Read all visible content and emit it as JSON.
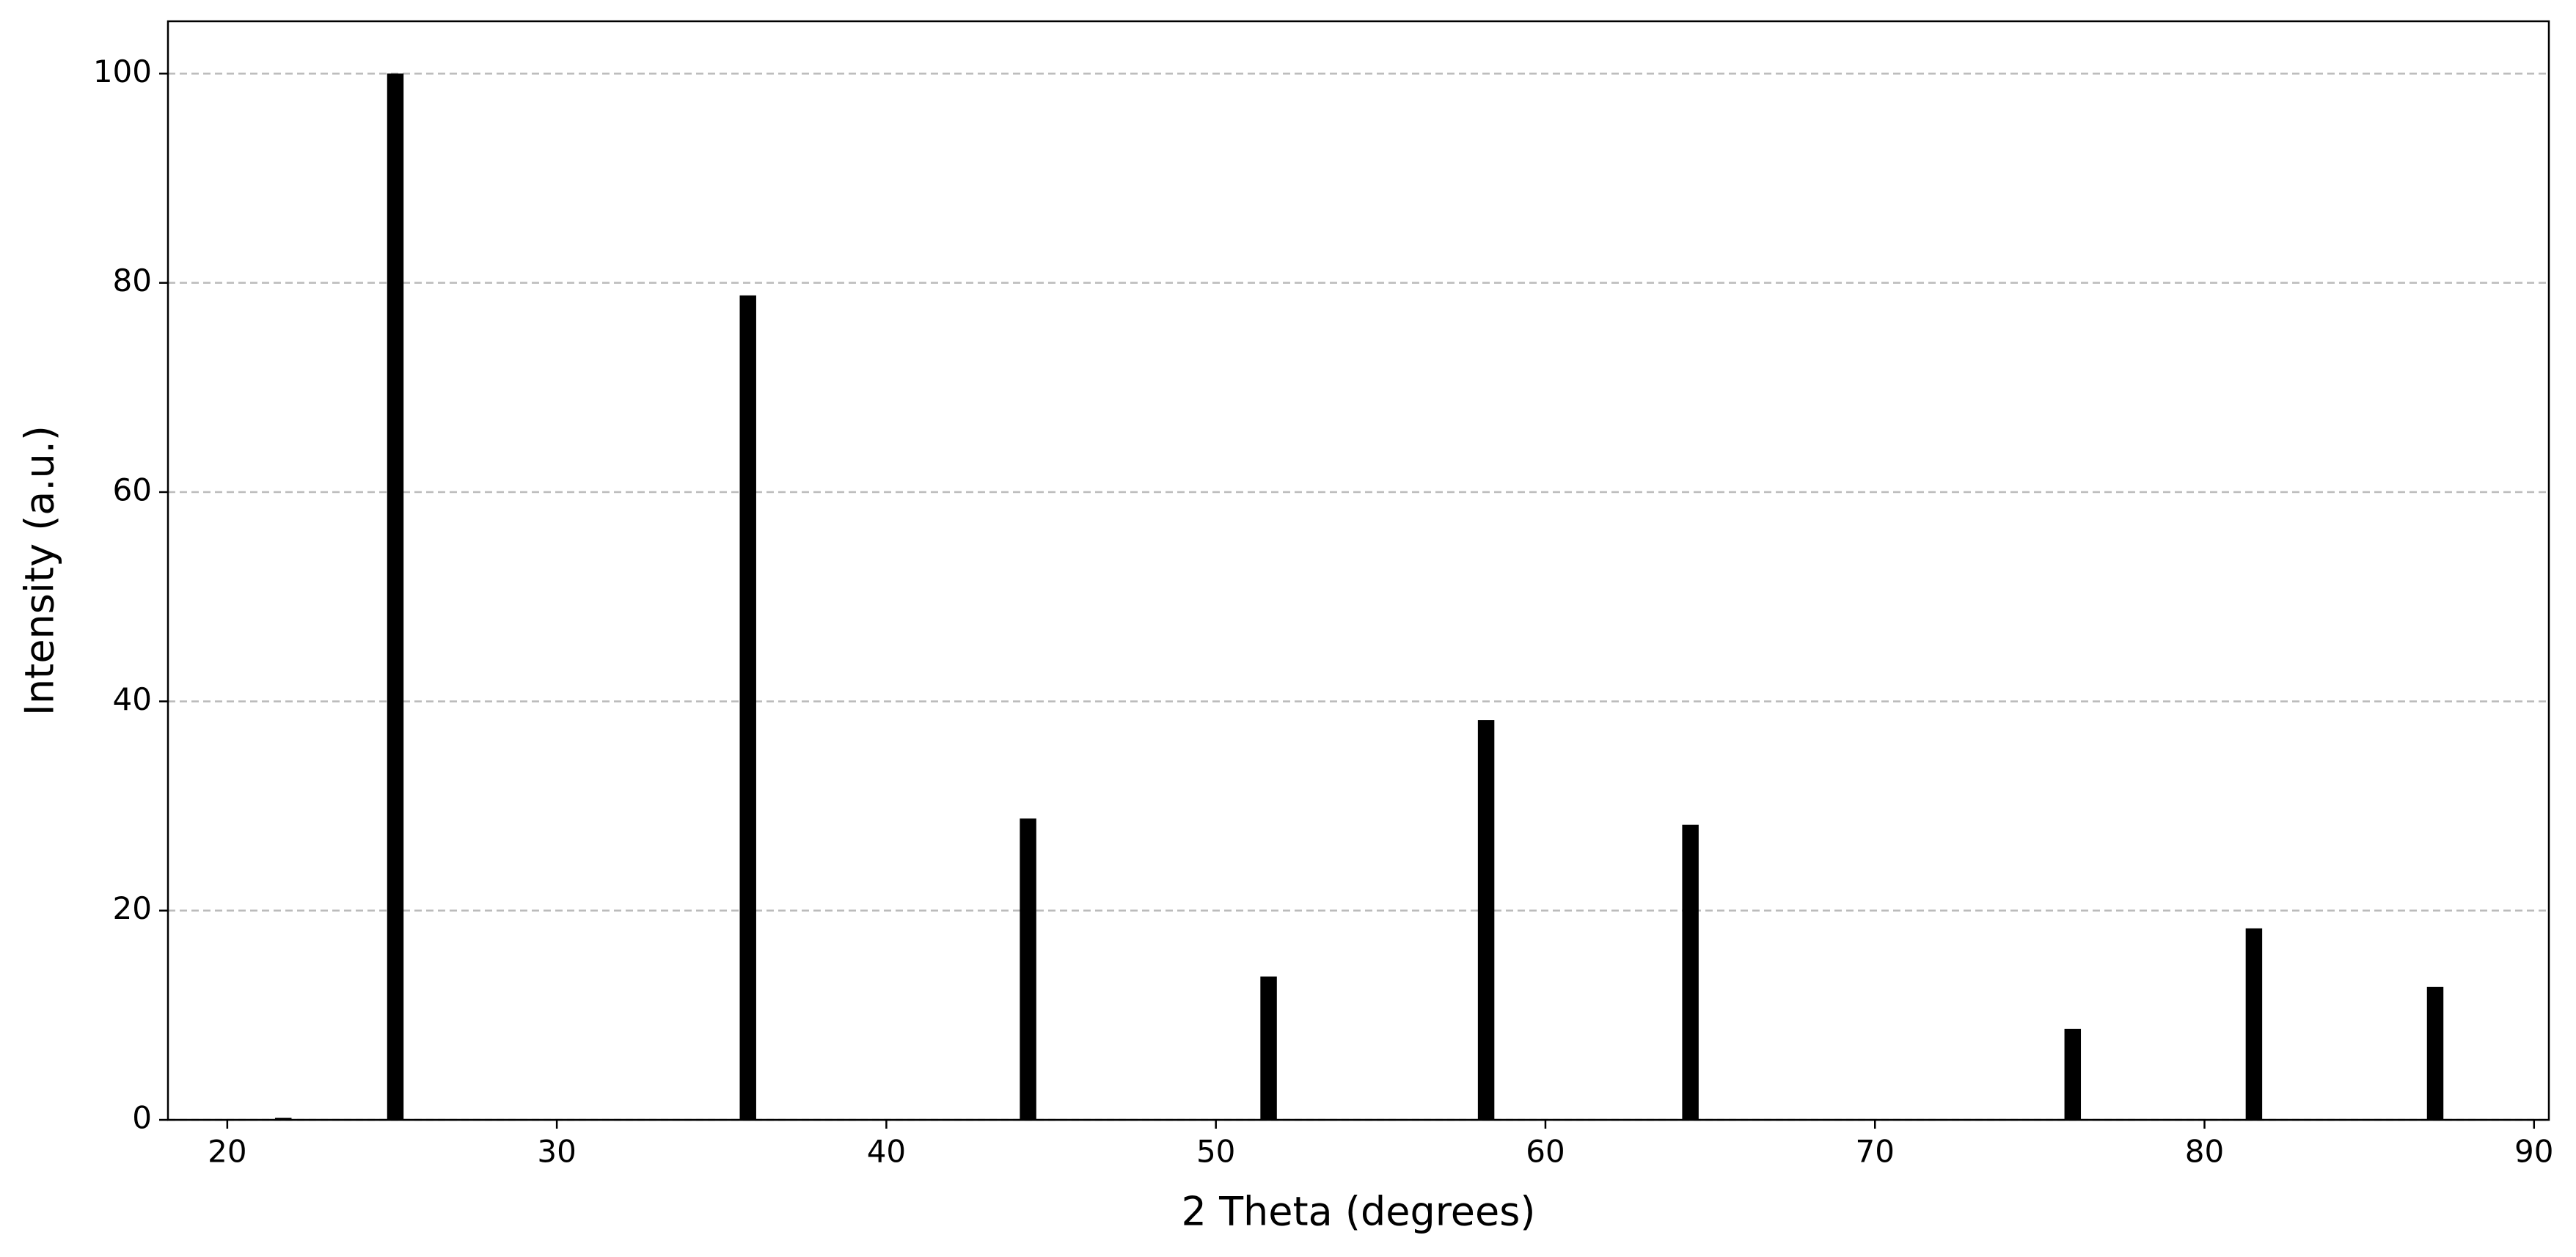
{
  "chart_data": {
    "type": "bar",
    "x": [
      21.7,
      25.1,
      35.8,
      44.3,
      51.6,
      58.2,
      64.4,
      76.0,
      81.5,
      87.0
    ],
    "values": [
      0.2,
      100,
      78.8,
      28.8,
      13.7,
      38.2,
      28.2,
      8.7,
      18.3,
      12.7
    ],
    "color": "#000000",
    "xlabel": "2 Theta (degrees)",
    "ylabel": "Intensity (a.u.)",
    "xlim": [
      18.2,
      90.45
    ],
    "xticks": [
      20,
      30,
      40,
      50,
      60,
      70,
      80,
      90
    ],
    "ylim": [
      0,
      105
    ],
    "yticks": [
      0,
      20,
      40,
      60,
      80,
      100
    ],
    "grid": "y"
  }
}
